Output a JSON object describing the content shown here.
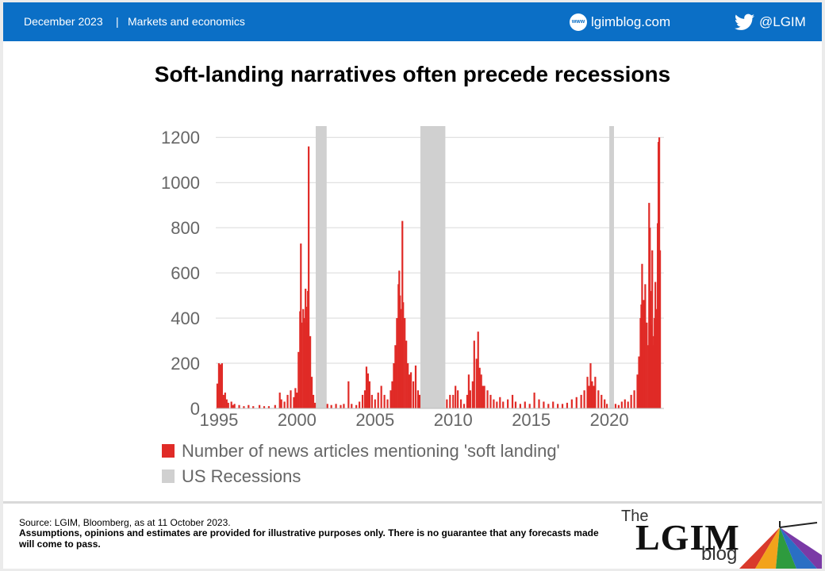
{
  "header": {
    "date": "December 2023",
    "separator": "|",
    "category": "Markets and economics",
    "www_badge": "www",
    "site": "lgimblog.com",
    "handle": "@LGIM"
  },
  "colors": {
    "header_blue": "#0b6fc6",
    "bar_red": "#e02b27",
    "recession_grey": "#c8c8c8"
  },
  "icons": {
    "globe": "www-globe-icon",
    "twitter": "twitter-bird-icon",
    "umbrella": "rainbow-umbrella-icon"
  },
  "chart_data": {
    "type": "bar",
    "title": "Soft-landing narratives often precede recessions",
    "ylim": [
      0,
      1250
    ],
    "yticks": [
      0,
      200,
      400,
      600,
      800,
      1000,
      1200
    ],
    "xlim": [
      1994.8,
      2023.5
    ],
    "xticks": [
      1995,
      2000,
      2005,
      2010,
      2015,
      2020
    ],
    "grid": true,
    "legend_position": "bottom",
    "legend": [
      {
        "label": "Number of news articles mentioning 'soft landing'",
        "color": "#e02b27"
      },
      {
        "label": "US Recessions",
        "color": "#d0d0d0"
      }
    ],
    "recessions": [
      {
        "start": 2001.2,
        "end": 2001.9
      },
      {
        "start": 2007.9,
        "end": 2009.5
      },
      {
        "start": 2020.0,
        "end": 2020.3
      }
    ],
    "series": [
      {
        "name": "Number of news articles mentioning 'soft landing'",
        "points": [
          [
            1994.9,
            110
          ],
          [
            1995.0,
            200
          ],
          [
            1995.1,
            195
          ],
          [
            1995.2,
            200
          ],
          [
            1995.3,
            60
          ],
          [
            1995.4,
            70
          ],
          [
            1995.5,
            40
          ],
          [
            1995.6,
            25
          ],
          [
            1995.8,
            30
          ],
          [
            1995.9,
            15
          ],
          [
            1996.0,
            20
          ],
          [
            1996.3,
            15
          ],
          [
            1996.6,
            10
          ],
          [
            1996.9,
            15
          ],
          [
            1997.2,
            10
          ],
          [
            1997.6,
            15
          ],
          [
            1997.9,
            10
          ],
          [
            1998.2,
            10
          ],
          [
            1998.6,
            15
          ],
          [
            1998.9,
            70
          ],
          [
            1999.0,
            40
          ],
          [
            1999.2,
            30
          ],
          [
            1999.4,
            60
          ],
          [
            1999.6,
            80
          ],
          [
            1999.8,
            50
          ],
          [
            1999.9,
            90
          ],
          [
            2000.0,
            70
          ],
          [
            2000.1,
            250
          ],
          [
            2000.2,
            430
          ],
          [
            2000.25,
            730
          ],
          [
            2000.3,
            380
          ],
          [
            2000.4,
            440
          ],
          [
            2000.45,
            400
          ],
          [
            2000.5,
            380
          ],
          [
            2000.55,
            530
          ],
          [
            2000.6,
            450
          ],
          [
            2000.65,
            380
          ],
          [
            2000.7,
            520
          ],
          [
            2000.75,
            1160
          ],
          [
            2000.85,
            320
          ],
          [
            2000.95,
            140
          ],
          [
            2001.05,
            60
          ],
          [
            2001.15,
            25
          ],
          [
            2001.95,
            20
          ],
          [
            2002.2,
            15
          ],
          [
            2002.5,
            20
          ],
          [
            2002.8,
            15
          ],
          [
            2003.0,
            20
          ],
          [
            2003.3,
            120
          ],
          [
            2003.5,
            20
          ],
          [
            2003.8,
            15
          ],
          [
            2004.0,
            30
          ],
          [
            2004.2,
            60
          ],
          [
            2004.35,
            80
          ],
          [
            2004.45,
            185
          ],
          [
            2004.55,
            155
          ],
          [
            2004.65,
            120
          ],
          [
            2004.8,
            60
          ],
          [
            2005.0,
            40
          ],
          [
            2005.2,
            70
          ],
          [
            2005.4,
            100
          ],
          [
            2005.6,
            60
          ],
          [
            2005.8,
            40
          ],
          [
            2006.0,
            80
          ],
          [
            2006.1,
            120
          ],
          [
            2006.2,
            200
          ],
          [
            2006.3,
            280
          ],
          [
            2006.4,
            400
          ],
          [
            2006.5,
            550
          ],
          [
            2006.55,
            610
          ],
          [
            2006.6,
            500
          ],
          [
            2006.65,
            440
          ],
          [
            2006.7,
            390
          ],
          [
            2006.75,
            830
          ],
          [
            2006.8,
            470
          ],
          [
            2006.9,
            400
          ],
          [
            2007.0,
            300
          ],
          [
            2007.1,
            200
          ],
          [
            2007.2,
            150
          ],
          [
            2007.3,
            160
          ],
          [
            2007.45,
            120
          ],
          [
            2007.6,
            190
          ],
          [
            2007.75,
            80
          ],
          [
            2007.85,
            60
          ],
          [
            2009.6,
            40
          ],
          [
            2009.8,
            60
          ],
          [
            2010.0,
            60
          ],
          [
            2010.15,
            100
          ],
          [
            2010.3,
            80
          ],
          [
            2010.5,
            40
          ],
          [
            2010.7,
            20
          ],
          [
            2010.9,
            60
          ],
          [
            2011.0,
            150
          ],
          [
            2011.1,
            80
          ],
          [
            2011.25,
            120
          ],
          [
            2011.35,
            300
          ],
          [
            2011.5,
            220
          ],
          [
            2011.6,
            340
          ],
          [
            2011.7,
            180
          ],
          [
            2011.8,
            150
          ],
          [
            2011.9,
            100
          ],
          [
            2012.0,
            100
          ],
          [
            2012.2,
            80
          ],
          [
            2012.4,
            60
          ],
          [
            2012.6,
            40
          ],
          [
            2012.8,
            30
          ],
          [
            2013.0,
            50
          ],
          [
            2013.2,
            30
          ],
          [
            2013.5,
            40
          ],
          [
            2013.8,
            60
          ],
          [
            2014.0,
            30
          ],
          [
            2014.3,
            20
          ],
          [
            2014.6,
            30
          ],
          [
            2014.9,
            20
          ],
          [
            2015.2,
            70
          ],
          [
            2015.5,
            40
          ],
          [
            2015.8,
            30
          ],
          [
            2016.1,
            20
          ],
          [
            2016.4,
            30
          ],
          [
            2016.7,
            20
          ],
          [
            2017.0,
            20
          ],
          [
            2017.3,
            25
          ],
          [
            2017.6,
            40
          ],
          [
            2017.9,
            50
          ],
          [
            2018.2,
            60
          ],
          [
            2018.4,
            80
          ],
          [
            2018.6,
            140
          ],
          [
            2018.7,
            100
          ],
          [
            2018.8,
            200
          ],
          [
            2018.9,
            120
          ],
          [
            2019.0,
            100
          ],
          [
            2019.1,
            140
          ],
          [
            2019.3,
            80
          ],
          [
            2019.5,
            60
          ],
          [
            2019.7,
            40
          ],
          [
            2019.85,
            20
          ],
          [
            2020.4,
            20
          ],
          [
            2020.6,
            15
          ],
          [
            2020.8,
            30
          ],
          [
            2021.0,
            40
          ],
          [
            2021.2,
            30
          ],
          [
            2021.4,
            60
          ],
          [
            2021.6,
            80
          ],
          [
            2021.8,
            150
          ],
          [
            2021.9,
            230
          ],
          [
            2022.0,
            400
          ],
          [
            2022.05,
            460
          ],
          [
            2022.1,
            640
          ],
          [
            2022.15,
            450
          ],
          [
            2022.2,
            480
          ],
          [
            2022.3,
            550
          ],
          [
            2022.4,
            380
          ],
          [
            2022.5,
            280
          ],
          [
            2022.55,
            910
          ],
          [
            2022.6,
            800
          ],
          [
            2022.65,
            520
          ],
          [
            2022.7,
            370
          ],
          [
            2022.75,
            700
          ],
          [
            2022.8,
            280
          ],
          [
            2022.85,
            320
          ],
          [
            2022.9,
            400
          ],
          [
            2022.95,
            560
          ],
          [
            2023.0,
            400
          ],
          [
            2023.05,
            440
          ],
          [
            2023.1,
            820
          ],
          [
            2023.15,
            1180
          ],
          [
            2023.2,
            1200
          ],
          [
            2023.25,
            700
          ]
        ]
      }
    ]
  },
  "footer": {
    "source": "Source: LGIM, Bloomberg, as at 11 October 2023.",
    "disclaimer": "Assumptions, opinions and estimates are provided for illustrative purposes only. There is no guarantee that any forecasts made will come to pass.",
    "logo_the": "The",
    "logo_lgim": "LGIM",
    "logo_blog": "blog"
  }
}
